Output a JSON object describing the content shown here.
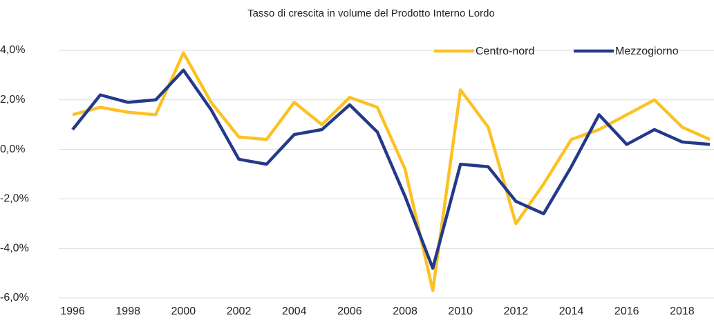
{
  "chart_data": {
    "type": "line",
    "title": "Tasso di crescita in volume del Prodotto Interno Lordo",
    "x": [
      1996,
      1997,
      1998,
      1999,
      2000,
      2001,
      2002,
      2003,
      2004,
      2005,
      2006,
      2007,
      2008,
      2009,
      2010,
      2011,
      2012,
      2013,
      2014,
      2015,
      2016,
      2017,
      2018,
      2019
    ],
    "series": [
      {
        "name": "Centro-nord",
        "color": "#fcc123",
        "values": [
          1.4,
          1.7,
          1.5,
          1.4,
          3.9,
          1.9,
          0.5,
          0.4,
          1.9,
          1.0,
          2.1,
          1.7,
          -0.8,
          -5.7,
          2.4,
          0.9,
          -3.0,
          -1.4,
          0.4,
          0.8,
          1.4,
          2.0,
          0.9,
          0.4
        ]
      },
      {
        "name": "Mezzogiorno",
        "color": "#233a8c",
        "values": [
          0.8,
          2.2,
          1.9,
          2.0,
          3.2,
          1.6,
          -0.4,
          -0.6,
          0.6,
          0.8,
          1.8,
          0.7,
          -1.9,
          -4.8,
          -0.6,
          -0.7,
          -2.1,
          -2.6,
          -0.7,
          1.4,
          0.2,
          0.8,
          0.3,
          0.2
        ]
      }
    ],
    "xlim": [
      1995.5,
      2019.15
    ],
    "xticks": [
      1996,
      1998,
      2000,
      2002,
      2004,
      2006,
      2008,
      2010,
      2012,
      2014,
      2016,
      2018
    ],
    "ylim": [
      -6,
      4
    ],
    "yticks": [
      {
        "value": -6,
        "label": "-6,0%"
      },
      {
        "value": -4,
        "label": "-4,0%"
      },
      {
        "value": -2,
        "label": "-2,0%"
      },
      {
        "value": 0,
        "label": "0,0%"
      },
      {
        "value": 2,
        "label": "2,0%"
      },
      {
        "value": 4,
        "label": "4,0%"
      }
    ],
    "grid": true,
    "legend": "upper right"
  }
}
